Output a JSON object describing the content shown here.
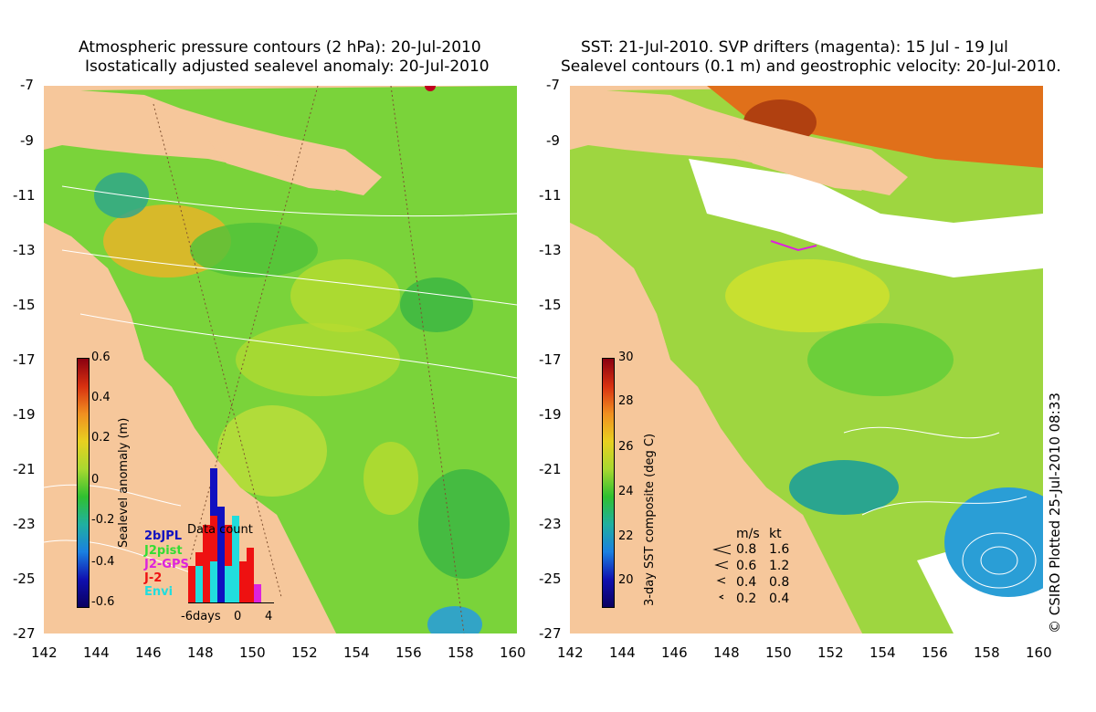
{
  "left": {
    "title_line1": "Atmospheric pressure contours (2 hPa): 20-Jul-2010",
    "title_line2": "Isostatically adjusted sealevel anomaly: 20-Jul-2010",
    "colorbar_label": "Sealevel anomaly (m)",
    "colorbar_ticks": [
      "0.6",
      "0.4",
      "0.2",
      "0",
      "-0.2",
      "-0.4",
      "-0.6"
    ],
    "histogram": {
      "title": "Data count",
      "legend": [
        {
          "label": "2bJPL",
          "color": "#1010c0"
        },
        {
          "label": "J2pist",
          "color": "#33dd33"
        },
        {
          "label": "J2-GPS",
          "color": "#dd22dd"
        },
        {
          "label": "J-2",
          "color": "#ee1111"
        },
        {
          "label": "Envi",
          "color": "#22dddd"
        }
      ],
      "x_ticks": [
        "-6days",
        "0",
        "4"
      ]
    }
  },
  "right": {
    "title_line1": "SST: 21-Jul-2010. SVP drifters (magenta): 15 Jul - 19 Jul",
    "title_line2": "Sealevel contours (0.1 m) and geostrophic velocity: 20-Jul-2010.",
    "colorbar_label": "3-day SST composite (deg C)",
    "colorbar_ticks": [
      "30",
      "28",
      "26",
      "24",
      "22",
      "20"
    ],
    "speed_legend": {
      "header_ms": "m/s",
      "header_kt": "kt",
      "rows": [
        {
          "ms": "0.8",
          "kt": "1.6"
        },
        {
          "ms": "0.6",
          "kt": "1.2"
        },
        {
          "ms": "0.4",
          "kt": "0.8"
        },
        {
          "ms": "0.2",
          "kt": "0.4"
        }
      ]
    },
    "copyright": "© CSIRO Plotted 25-Jul-2010 08:33"
  },
  "lat_ticks": [
    "-7",
    "-9",
    "-11",
    "-13",
    "-15",
    "-17",
    "-19",
    "-21",
    "-23",
    "-25",
    "-27"
  ],
  "lon_ticks": [
    "142",
    "144",
    "146",
    "148",
    "150",
    "152",
    "154",
    "156",
    "158",
    "160"
  ],
  "colors": {
    "land": "#f6c79b",
    "sea_green": "#7ad33a",
    "warm": "#e8b428",
    "cool": "#2aa58f"
  }
}
